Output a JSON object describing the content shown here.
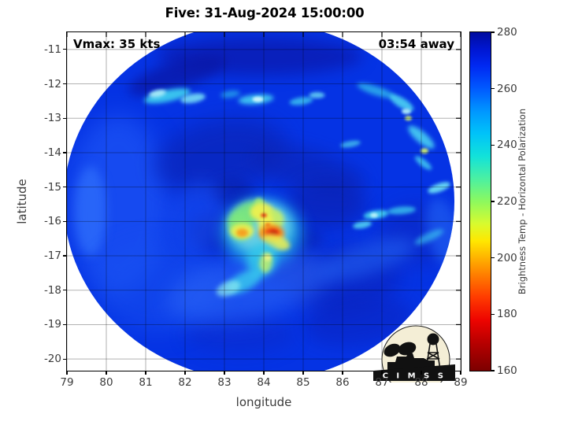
{
  "chart_data": {
    "type": "heatmap",
    "title": "Five: 31-Aug-2024 15:00:00",
    "storm_name": "Five",
    "timestamp": "31-Aug-2024 15:00:00",
    "xlabel": "longitude",
    "ylabel": "latitude",
    "xlim": [
      79,
      89
    ],
    "ylim": [
      -10.5,
      -20.34
    ],
    "x_ticks": [
      79,
      80,
      81,
      82,
      83,
      84,
      85,
      86,
      87,
      88,
      89
    ],
    "y_ticks": [
      -11,
      -12,
      -13,
      -14,
      -15,
      -16,
      -17,
      -18,
      -19,
      -20
    ],
    "grid": true,
    "annotations": {
      "vmax": "Vmax: 35 kts",
      "time_away": "03:54 away"
    },
    "colorbar": {
      "label": "Brightness Temp - Horizontal Polarization",
      "min": 160,
      "max": 280,
      "ticks": [
        160,
        180,
        200,
        220,
        240,
        260,
        280
      ],
      "stops": [
        [
          160,
          "#7c0000"
        ],
        [
          170,
          "#b80000"
        ],
        [
          178,
          "#ee0400"
        ],
        [
          186,
          "#ff3b00"
        ],
        [
          194,
          "#ff7e00"
        ],
        [
          200,
          "#ffb200"
        ],
        [
          206,
          "#ffe700"
        ],
        [
          212,
          "#d9fb2e"
        ],
        [
          220,
          "#8df95e"
        ],
        [
          228,
          "#4bf0a2"
        ],
        [
          236,
          "#12e2d9"
        ],
        [
          244,
          "#00c3f9"
        ],
        [
          252,
          "#0096ff"
        ],
        [
          260,
          "#005aff"
        ],
        [
          268,
          "#0029f2"
        ],
        [
          274,
          "#0016d2"
        ],
        [
          280,
          "#000c9e"
        ]
      ]
    },
    "swath": {
      "center_lon": 83.88,
      "center_lat": -15.42,
      "rx_deg_lon": 4.96,
      "ry_deg_lat": 5.22,
      "background": "#0533e4"
    },
    "storm_center": {
      "lon": 84.2,
      "lat": -16.35
    },
    "feature_format": [
      "lon",
      "lat",
      "rx_deg",
      "ry_deg",
      "rot_deg",
      "color",
      "opacity",
      "blur_px"
    ],
    "features": [
      [
        80.3,
        -15.5,
        1.3,
        2.6,
        0,
        "#1c53f4",
        0.75,
        14
      ],
      [
        79.6,
        -15.7,
        0.4,
        1.3,
        0,
        "#2d6bfa",
        0.8,
        6
      ],
      [
        81.3,
        -17.9,
        1.6,
        1.3,
        0,
        "#1850f0",
        0.55,
        14
      ],
      [
        83.9,
        -11.2,
        2.6,
        0.55,
        0,
        "#0a1cb2",
        0.8,
        9
      ],
      [
        81.8,
        -11.75,
        1.3,
        0.4,
        -18,
        "#0917a6",
        0.75,
        7
      ],
      [
        82.9,
        -14.1,
        1.7,
        1.05,
        -12,
        "#0a23b6",
        0.7,
        13
      ],
      [
        85.1,
        -14.5,
        1.5,
        0.6,
        15,
        "#0a23b6",
        0.65,
        11
      ],
      [
        85.6,
        -15.5,
        1.0,
        0.7,
        0,
        "#0a21b0",
        0.65,
        11
      ],
      [
        83.2,
        -15.2,
        0.55,
        0.45,
        0,
        "#0920aa",
        0.6,
        7
      ],
      [
        82.9,
        -16.3,
        0.8,
        0.6,
        0,
        "#0a22b0",
        0.6,
        9
      ],
      [
        84.95,
        -16.55,
        0.55,
        0.4,
        0,
        "#0a20ac",
        0.55,
        7
      ],
      [
        84.6,
        -17.35,
        0.7,
        0.45,
        0,
        "#0a22b0",
        0.5,
        9
      ],
      [
        86.1,
        -17.7,
        1.4,
        1.0,
        -10,
        "#0a22bb",
        0.6,
        12
      ],
      [
        86.4,
        -18.9,
        1.4,
        0.7,
        -8,
        "#0a22c0",
        0.55,
        11
      ],
      [
        87.9,
        -16.4,
        1.0,
        0.9,
        0,
        "#0b24bc",
        0.5,
        12
      ],
      [
        83.4,
        -19.3,
        1.4,
        0.55,
        0,
        "#0c28c4",
        0.4,
        10
      ],
      [
        82.3,
        -15.9,
        0.7,
        1.1,
        15,
        "#1a50f2",
        0.5,
        10
      ],
      [
        83.6,
        -17.9,
        2.1,
        0.95,
        -12,
        "#2b66f6",
        0.6,
        13
      ],
      [
        86.6,
        -17.1,
        1.3,
        0.45,
        -18,
        "#2464f4",
        0.55,
        9
      ],
      [
        88.55,
        -16.3,
        0.4,
        1.0,
        -12,
        "#1e5ef4",
        0.7,
        7
      ],
      [
        81.55,
        -12.35,
        0.6,
        0.17,
        -12,
        "#3ed2f1",
        0.9,
        3
      ],
      [
        81.3,
        -12.28,
        0.22,
        0.1,
        -12,
        "#aef2fa",
        0.9,
        2
      ],
      [
        82.2,
        -12.42,
        0.32,
        0.13,
        -10,
        "#7ce6f7",
        0.85,
        2.5
      ],
      [
        83.15,
        -12.3,
        0.25,
        0.1,
        -8,
        "#31c9ee",
        0.6,
        3
      ],
      [
        83.8,
        -12.45,
        0.45,
        0.14,
        -5,
        "#47d7f3",
        0.85,
        3
      ],
      [
        83.85,
        -12.45,
        0.14,
        0.08,
        0,
        "#d9fbfd",
        0.9,
        1.5
      ],
      [
        84.95,
        -12.5,
        0.3,
        0.11,
        -8,
        "#42d4f2",
        0.75,
        2.5
      ],
      [
        85.35,
        -12.33,
        0.2,
        0.09,
        0,
        "#6ee2f5",
        0.8,
        2
      ],
      [
        86.85,
        -12.2,
        0.5,
        0.13,
        18,
        "#36ccee",
        0.7,
        3
      ],
      [
        87.5,
        -12.55,
        0.35,
        0.14,
        32,
        "#4fd9f3",
        0.85,
        2.5
      ],
      [
        87.62,
        -12.8,
        0.12,
        0.08,
        0,
        "#b7f4fb",
        0.9,
        1.5
      ],
      [
        87.67,
        -13.0,
        0.09,
        0.07,
        0,
        "#d8f767",
        0.9,
        1.5
      ],
      [
        88.0,
        -13.55,
        0.42,
        0.16,
        40,
        "#4bd7f2",
        0.85,
        3
      ],
      [
        88.08,
        -13.95,
        0.1,
        0.08,
        0,
        "#d8f767",
        0.9,
        1.5
      ],
      [
        88.05,
        -14.3,
        0.26,
        0.1,
        38,
        "#45d4f1",
        0.8,
        2.5
      ],
      [
        86.2,
        -13.75,
        0.26,
        0.09,
        -10,
        "#4fd8f0",
        0.7,
        2
      ],
      [
        86.85,
        -15.8,
        0.32,
        0.12,
        -8,
        "#44d5f2",
        0.9,
        2.5
      ],
      [
        86.8,
        -15.82,
        0.1,
        0.07,
        0,
        "#c8f6fb",
        0.9,
        1.5
      ],
      [
        87.5,
        -15.68,
        0.36,
        0.11,
        -5,
        "#3fd2f0",
        0.75,
        2.5
      ],
      [
        88.45,
        -15.02,
        0.3,
        0.12,
        -20,
        "#6ee2f6",
        0.9,
        2
      ],
      [
        86.5,
        -16.1,
        0.24,
        0.1,
        -10,
        "#55dbf3",
        0.85,
        2
      ],
      [
        88.2,
        -16.45,
        0.4,
        0.12,
        -25,
        "#3fd2f0",
        0.6,
        3
      ],
      [
        83.95,
        -16.3,
        1.0,
        0.95,
        0,
        "#27bdea",
        0.8,
        9
      ],
      [
        83.9,
        -16.15,
        0.8,
        0.72,
        0,
        "#73d6e3",
        0.85,
        6
      ],
      [
        83.55,
        -15.8,
        0.5,
        0.32,
        -30,
        "#79e67c",
        0.9,
        4
      ],
      [
        83.4,
        -16.15,
        0.28,
        0.38,
        0,
        "#7de87e",
        0.9,
        4
      ],
      [
        83.88,
        -15.45,
        0.12,
        0.14,
        0,
        "#9cea75",
        0.85,
        2
      ],
      [
        83.95,
        -15.72,
        0.3,
        0.26,
        0,
        "#eef04e",
        0.95,
        3
      ],
      [
        84.25,
        -15.95,
        0.26,
        0.3,
        0,
        "#c9ee61",
        0.9,
        3
      ],
      [
        83.45,
        -16.28,
        0.3,
        0.22,
        0,
        "#f2ef4c",
        0.9,
        3
      ],
      [
        83.45,
        -16.33,
        0.15,
        0.12,
        0,
        "#f59d1f",
        0.95,
        2
      ],
      [
        84.05,
        -16.1,
        0.2,
        0.36,
        0,
        "#f3f04e",
        0.9,
        3
      ],
      [
        84.2,
        -16.35,
        0.32,
        0.26,
        0,
        "#f68a18",
        0.95,
        3
      ],
      [
        84.22,
        -16.34,
        0.18,
        0.14,
        0,
        "#ea3a10",
        0.95,
        2
      ],
      [
        84.25,
        -16.33,
        0.09,
        0.07,
        0,
        "#c3290a",
        0.9,
        1.5
      ],
      [
        84.0,
        -15.82,
        0.08,
        0.06,
        0,
        "#e83c12",
        0.9,
        1.5
      ],
      [
        84.1,
        -16.1,
        0.07,
        0.05,
        0,
        "#f07416",
        0.9,
        1.5
      ],
      [
        84.32,
        -16.6,
        0.36,
        0.2,
        20,
        "#edef4e",
        0.85,
        3
      ],
      [
        83.95,
        -17.1,
        0.38,
        0.5,
        12,
        "#32c7ea",
        0.85,
        5
      ],
      [
        84.05,
        -17.2,
        0.16,
        0.3,
        8,
        "#b9ec71",
        0.9,
        3
      ],
      [
        84.1,
        -17.05,
        0.09,
        0.1,
        0,
        "#eef286",
        0.9,
        2
      ],
      [
        83.5,
        -17.75,
        0.5,
        0.26,
        -28,
        "#38cdee",
        0.8,
        4
      ],
      [
        83.1,
        -17.95,
        0.32,
        0.2,
        -22,
        "#8ce9f0",
        0.7,
        3
      ]
    ]
  },
  "logo": {
    "text": "C I M S S"
  }
}
